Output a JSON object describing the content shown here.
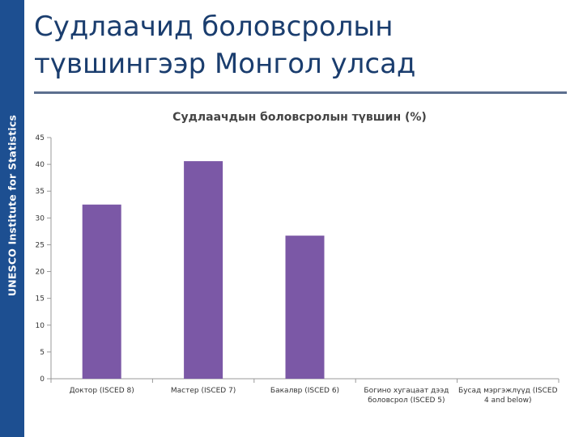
{
  "sidebar": {
    "label": "UNESCO Institute for Statistics"
  },
  "slide": {
    "title": "Судлаачид боловсролын түвшингээр Монгол улсад"
  },
  "colors": {
    "bar": "#7b58a6",
    "sidebar": "#1d4f91",
    "title": "#1a3d6e"
  },
  "chart_data": {
    "type": "bar",
    "title": "Судлаачдын боловсролын түвшин (%)",
    "xlabel": "",
    "ylabel": "",
    "ylim": [
      0,
      45
    ],
    "yticks": [
      0,
      5,
      10,
      15,
      20,
      25,
      30,
      35,
      40,
      45
    ],
    "grid": false,
    "categories": [
      [
        "Доктор (ISCED 8)"
      ],
      [
        "Мастер (ISCED 7)"
      ],
      [
        "Бакалвр (ISCED 6)"
      ],
      [
        "Богино хугацаат дээд",
        "боловсрол (ISCED 5)"
      ],
      [
        "Бусад мэргэжлүүд (ISCED",
        "4 and below)"
      ]
    ],
    "values": [
      32.5,
      40.6,
      26.7,
      0,
      0
    ]
  }
}
